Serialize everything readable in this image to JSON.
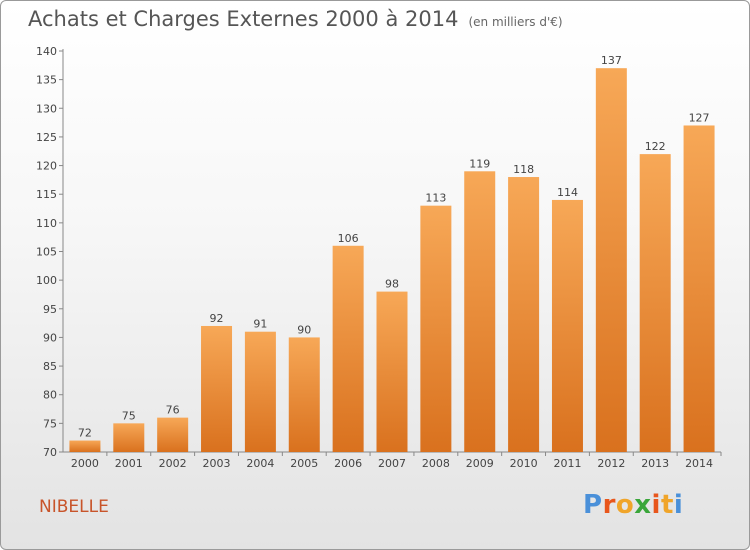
{
  "title": "Achats et Charges Externes 2000 à 2014",
  "unit_note": "(en milliers d'€)",
  "commune": "NIBELLE",
  "logo": {
    "text": "Proxiti",
    "letter_colors": [
      "#4a90d9",
      "#e8561c",
      "#f0a52a",
      "#3aa63a",
      "#e8561c",
      "#f0a52a",
      "#4a90d9"
    ]
  },
  "chart_data": {
    "type": "bar",
    "categories": [
      "2000",
      "2001",
      "2002",
      "2003",
      "2004",
      "2005",
      "2006",
      "2007",
      "2008",
      "2009",
      "2010",
      "2011",
      "2012",
      "2013",
      "2014"
    ],
    "values": [
      72,
      75,
      76,
      92,
      91,
      90,
      106,
      98,
      113,
      119,
      118,
      114,
      137,
      122,
      127
    ],
    "ylim": [
      70,
      140
    ],
    "yticks": [
      70,
      75,
      80,
      85,
      90,
      95,
      100,
      105,
      110,
      115,
      120,
      125,
      130,
      135,
      140
    ],
    "grid": false,
    "bar_color_top": "#f7a857",
    "bar_color_bottom": "#d9711e"
  }
}
